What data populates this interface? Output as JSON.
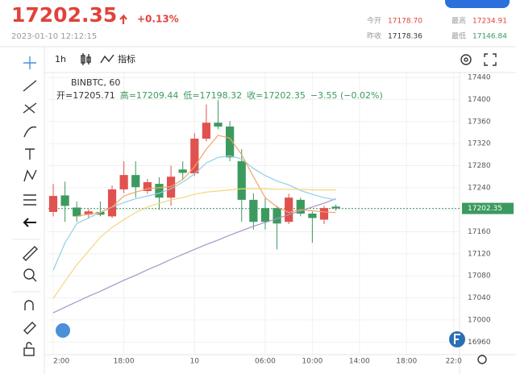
{
  "header": {
    "price": "17202.35",
    "change": "+0.13%",
    "time": "2023-01-10 12:12:15",
    "stats": [
      {
        "label": "今开",
        "value": "17178.70"
      },
      {
        "label": "最高",
        "value": "17234.91"
      },
      {
        "label": "昨收",
        "value": "17178.36"
      },
      {
        "label": "最低",
        "value": "17146.84"
      }
    ]
  },
  "toolbar": {
    "interval": "1h",
    "indicators": "指标"
  },
  "chart_data": {
    "type": "candlestick",
    "symbol": "BINBTC, 60",
    "ohlc_legend": [
      "开=17205.71",
      "高=17209.44",
      "低=17198.32",
      "收=17202.35",
      "−3.55 (−0.02%)"
    ],
    "up_color": "#e0524f",
    "down_color": "#3c9a5f",
    "candles": {
      "open": [
        17196,
        17226,
        17204,
        17191,
        17196,
        17188,
        17237,
        17263,
        17234,
        17247,
        17222,
        17273,
        17266,
        17329,
        17358,
        17351,
        17288,
        17218,
        17203,
        17203,
        17178,
        17218,
        17193,
        17182,
        17205.71
      ],
      "high": [
        17247,
        17251,
        17215,
        17201,
        17215,
        17244,
        17288,
        17288,
        17256,
        17259,
        17280,
        17288,
        17339,
        17391,
        17399,
        17361,
        17310,
        17230,
        17222,
        17207,
        17229,
        17222,
        17197,
        17207,
        17209.44
      ],
      "low": [
        17188,
        17178,
        17178,
        17184,
        17188,
        17185,
        17230,
        17222,
        17229,
        17200,
        17207,
        17256,
        17261,
        17324,
        17346,
        17288,
        17178,
        17164,
        17164,
        17128,
        17174,
        17188,
        17140,
        17174,
        17198.32
      ],
      "close": [
        17225,
        17207,
        17188,
        17197,
        17191,
        17237,
        17263,
        17241,
        17250,
        17222,
        17260,
        17267,
        17329,
        17358,
        17351,
        17295,
        17218,
        17178,
        17178,
        17175,
        17222,
        17193,
        17185,
        17203,
        17202.35
      ]
    },
    "moving_averages": [
      {
        "color": "#a894c8",
        "values": [
          17013,
          17023,
          17033,
          17043,
          17052,
          17062,
          17072,
          17081,
          17091,
          17100,
          17110,
          17119,
          17128,
          17137,
          17145,
          17154,
          17162,
          17170,
          17177,
          17184,
          17191,
          17198,
          17205,
          17212,
          17220
        ]
      },
      {
        "color": "#8fd0e8",
        "values": [
          17090,
          17140,
          17175,
          17185,
          17195,
          17205,
          17213,
          17220,
          17225,
          17230,
          17238,
          17250,
          17265,
          17285,
          17295,
          17298,
          17292,
          17275,
          17262,
          17252,
          17245,
          17235,
          17228,
          17222,
          17218
        ]
      },
      {
        "color": "#f2a66a",
        "values": [
          null,
          null,
          17188,
          17192,
          17195,
          17205,
          17225,
          17232,
          17238,
          17240,
          17242,
          17255,
          17278,
          17310,
          17335,
          17330,
          17300,
          17260,
          17222,
          17205,
          17195,
          17200,
          17198,
          17196,
          17195
        ]
      },
      {
        "color": "#f3d77a",
        "values": [
          17039,
          17070,
          17100,
          17125,
          17150,
          17168,
          17182,
          17195,
          17205,
          17212,
          17218,
          17222,
          17228,
          17232,
          17234,
          17236,
          17238,
          17238,
          17238,
          17237,
          17237,
          17237,
          17236,
          17236,
          17236
        ]
      }
    ],
    "price_line": 17202.35,
    "ylim": [
      16937,
      17449
    ],
    "yticks": [
      16960,
      17000,
      17040,
      17080,
      17120,
      17160,
      17200,
      17240,
      17280,
      17320,
      17360,
      17400,
      17440
    ],
    "xlim": [
      -0.41,
      34.5
    ],
    "xticks": [
      {
        "value": 0,
        "label": "2:00"
      },
      {
        "value": 6,
        "label": "18:00"
      },
      {
        "value": 12,
        "label": "10"
      },
      {
        "value": 18,
        "label": "06:00"
      },
      {
        "value": 22,
        "label": "10:00"
      },
      {
        "value": 26,
        "label": "14:00"
      },
      {
        "value": 30,
        "label": "18:00"
      },
      {
        "value": 34,
        "label": "22:0"
      }
    ],
    "grid": true
  }
}
